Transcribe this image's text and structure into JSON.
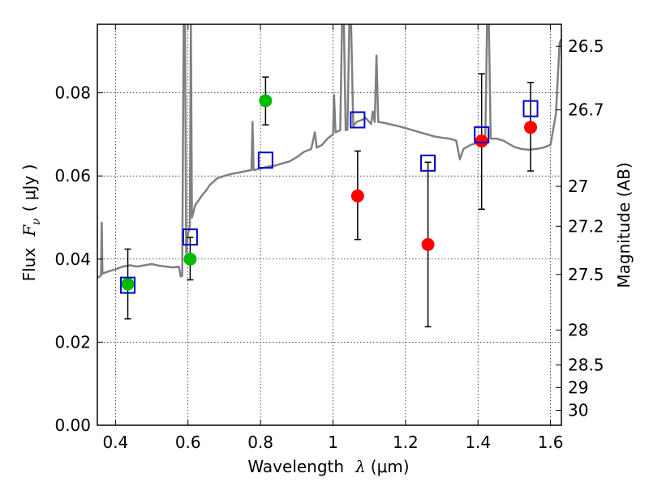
{
  "chart_data": {
    "type": "scatter",
    "xlabel": {
      "prefix": "Wavelength",
      "symbol": "λ",
      "unit": "(μm)"
    },
    "ylabel": {
      "prefix": "Flux",
      "symbol": "F",
      "subscript": "ν",
      "unit": "( μJy )"
    },
    "y2label": "Magnitude (AB)",
    "xlim": [
      0.35,
      1.63
    ],
    "ylim": [
      0.0,
      0.0965
    ],
    "xticks": [
      0.4,
      0.6,
      0.8,
      1.0,
      1.2,
      1.4,
      1.6
    ],
    "xtick_labels": [
      "0.4",
      "0.6",
      "0.8",
      "1",
      "1.2",
      "1.4",
      "1.6"
    ],
    "yticks": [
      0.0,
      0.02,
      0.04,
      0.06,
      0.08
    ],
    "ytick_labels": [
      "0.00",
      "0.02",
      "0.04",
      "0.06",
      "0.08"
    ],
    "y2ticks": [
      {
        "label": "26.5",
        "flux": 0.0912
      },
      {
        "label": "26.7",
        "flux": 0.0759
      },
      {
        "label": "27",
        "flux": 0.0575
      },
      {
        "label": "27.2",
        "flux": 0.0479
      },
      {
        "label": "27.5",
        "flux": 0.0363
      },
      {
        "label": "28",
        "flux": 0.0229
      },
      {
        "label": "28.5",
        "flux": 0.0145
      },
      {
        "label": "29",
        "flux": 0.0091
      },
      {
        "label": "30",
        "flux": 0.0036
      }
    ],
    "grid": true,
    "colors": {
      "green": "#00bb00",
      "red": "#ff0000",
      "blue": "#0000cc",
      "model": "#808080",
      "errorbar": "#000000"
    },
    "series": [
      {
        "marker": "circle-green",
        "points": [
          {
            "x": 0.434,
            "y": 0.034,
            "ylo": 0.0256,
            "yhi": 0.0424
          },
          {
            "x": 0.606,
            "y": 0.04,
            "ylo": 0.035,
            "yhi": 0.0452
          },
          {
            "x": 0.814,
            "y": 0.0781,
            "ylo": 0.0723,
            "yhi": 0.0838
          }
        ]
      },
      {
        "marker": "circle-red",
        "points": [
          {
            "x": 1.068,
            "y": 0.0552,
            "ylo": 0.0447,
            "yhi": 0.066
          },
          {
            "x": 1.262,
            "y": 0.0435,
            "ylo": 0.0237,
            "yhi": 0.0633
          },
          {
            "x": 1.41,
            "y": 0.0684,
            "ylo": 0.052,
            "yhi": 0.0846
          },
          {
            "x": 1.545,
            "y": 0.0717,
            "ylo": 0.0612,
            "yhi": 0.0825
          }
        ]
      },
      {
        "marker": "square-blue",
        "points": [
          {
            "x": 0.434,
            "y": 0.0337
          },
          {
            "x": 0.606,
            "y": 0.0453
          },
          {
            "x": 0.814,
            "y": 0.0638
          },
          {
            "x": 1.068,
            "y": 0.0735
          },
          {
            "x": 1.262,
            "y": 0.0631
          },
          {
            "x": 1.41,
            "y": 0.0699
          },
          {
            "x": 1.545,
            "y": 0.0762
          }
        ]
      },
      {
        "marker": "line-model",
        "points": [
          [
            0.35,
            0.0355
          ],
          [
            0.36,
            0.036
          ],
          [
            0.362,
            0.0488
          ],
          [
            0.364,
            0.0365
          ],
          [
            0.38,
            0.037
          ],
          [
            0.4,
            0.0375
          ],
          [
            0.42,
            0.0382
          ],
          [
            0.44,
            0.0385
          ],
          [
            0.46,
            0.0382
          ],
          [
            0.48,
            0.0385
          ],
          [
            0.5,
            0.0388
          ],
          [
            0.52,
            0.0384
          ],
          [
            0.54,
            0.0382
          ],
          [
            0.56,
            0.038
          ],
          [
            0.575,
            0.0382
          ],
          [
            0.58,
            0.0358
          ],
          [
            0.584,
            0.036
          ],
          [
            0.588,
            0.0965
          ],
          [
            0.592,
            0.0965
          ],
          [
            0.595,
            0.0415
          ],
          [
            0.6,
            0.046
          ],
          [
            0.605,
            0.048
          ],
          [
            0.608,
            0.0965
          ],
          [
            0.611,
            0.05
          ],
          [
            0.62,
            0.053
          ],
          [
            0.63,
            0.0542
          ],
          [
            0.64,
            0.0555
          ],
          [
            0.65,
            0.0565
          ],
          [
            0.66,
            0.0578
          ],
          [
            0.67,
            0.0586
          ],
          [
            0.68,
            0.0594
          ],
          [
            0.7,
            0.06
          ],
          [
            0.72,
            0.0605
          ],
          [
            0.74,
            0.0608
          ],
          [
            0.76,
            0.0612
          ],
          [
            0.775,
            0.0614
          ],
          [
            0.778,
            0.073
          ],
          [
            0.781,
            0.0614
          ],
          [
            0.8,
            0.0618
          ],
          [
            0.82,
            0.0622
          ],
          [
            0.84,
            0.0625
          ],
          [
            0.86,
            0.063
          ],
          [
            0.88,
            0.0635
          ],
          [
            0.9,
            0.0645
          ],
          [
            0.92,
            0.0658
          ],
          [
            0.94,
            0.0665
          ],
          [
            0.95,
            0.0705
          ],
          [
            0.955,
            0.0668
          ],
          [
            0.97,
            0.0675
          ],
          [
            0.985,
            0.069
          ],
          [
            1.0,
            0.07
          ],
          [
            1.003,
            0.0795
          ],
          [
            1.007,
            0.0705
          ],
          [
            1.02,
            0.071
          ],
          [
            1.025,
            0.0965
          ],
          [
            1.03,
            0.0965
          ],
          [
            1.035,
            0.071
          ],
          [
            1.04,
            0.0712
          ],
          [
            1.045,
            0.0965
          ],
          [
            1.05,
            0.0965
          ],
          [
            1.056,
            0.072
          ],
          [
            1.065,
            0.073
          ],
          [
            1.08,
            0.0735
          ],
          [
            1.09,
            0.074
          ],
          [
            1.105,
            0.0725
          ],
          [
            1.11,
            0.0755
          ],
          [
            1.115,
            0.073
          ],
          [
            1.12,
            0.089
          ],
          [
            1.125,
            0.073
          ],
          [
            1.14,
            0.0728
          ],
          [
            1.16,
            0.0724
          ],
          [
            1.18,
            0.072
          ],
          [
            1.2,
            0.0715
          ],
          [
            1.22,
            0.071
          ],
          [
            1.24,
            0.0705
          ],
          [
            1.26,
            0.07
          ],
          [
            1.28,
            0.0695
          ],
          [
            1.3,
            0.0692
          ],
          [
            1.32,
            0.069
          ],
          [
            1.34,
            0.0685
          ],
          [
            1.35,
            0.064
          ],
          [
            1.36,
            0.0665
          ],
          [
            1.38,
            0.0675
          ],
          [
            1.4,
            0.068
          ],
          [
            1.42,
            0.0685
          ],
          [
            1.425,
            0.0965
          ],
          [
            1.43,
            0.0965
          ],
          [
            1.435,
            0.069
          ],
          [
            1.45,
            0.069
          ],
          [
            1.47,
            0.0685
          ],
          [
            1.49,
            0.0675
          ],
          [
            1.5,
            0.067
          ],
          [
            1.52,
            0.0665
          ],
          [
            1.54,
            0.0663
          ],
          [
            1.56,
            0.0665
          ],
          [
            1.58,
            0.0668
          ],
          [
            1.6,
            0.0675
          ],
          [
            1.615,
            0.075
          ],
          [
            1.625,
            0.092
          ],
          [
            1.63,
            0.093
          ]
        ]
      }
    ]
  }
}
